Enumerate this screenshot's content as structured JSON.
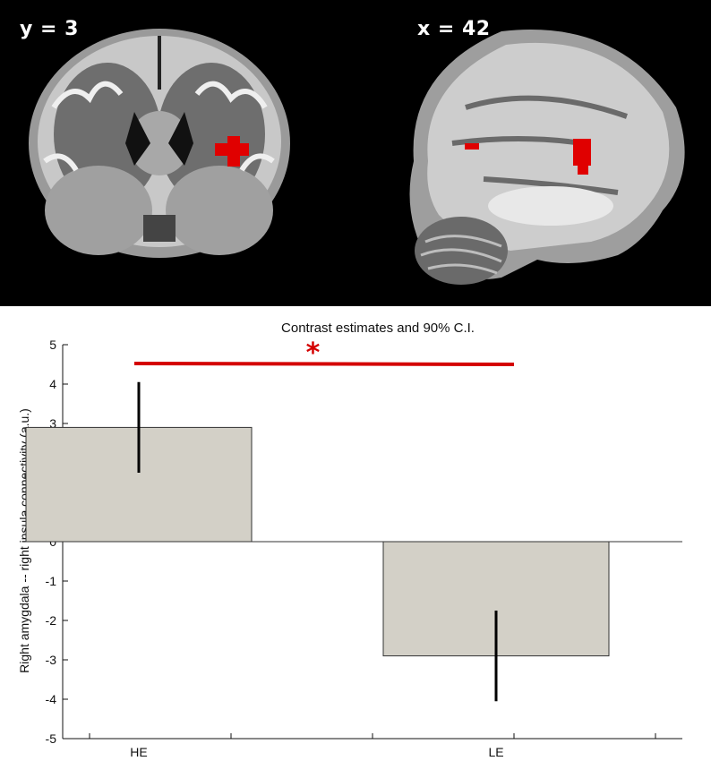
{
  "brain_images": {
    "coronal": {
      "label": "y = 3",
      "icon": "coronal-brain-slice-image"
    },
    "sagittal": {
      "label": "x = 42",
      "icon": "sagittal-brain-slice-image"
    },
    "activation_color": "#e00000"
  },
  "chart_data": {
    "type": "bar",
    "title": "Contrast estimates and 90% C.I.",
    "xlabel": "",
    "ylabel": "Right amygdala -- right insula connectivity (a.u.)",
    "categories": [
      "HE",
      "LE"
    ],
    "values": [
      2.9,
      -2.9
    ],
    "ci_lower": [
      1.75,
      -4.05
    ],
    "ci_upper": [
      4.05,
      -1.75
    ],
    "ylim": [
      -5,
      5
    ],
    "yticks": [
      "5",
      "4",
      "3",
      "2",
      "1",
      "0",
      "-1",
      "-2",
      "-3",
      "-4",
      "-5"
    ],
    "grid": false,
    "bar_color": "#d3d0c7",
    "significance": {
      "symbol": "*",
      "between": [
        "HE",
        "LE"
      ],
      "color": "#d40000"
    }
  }
}
